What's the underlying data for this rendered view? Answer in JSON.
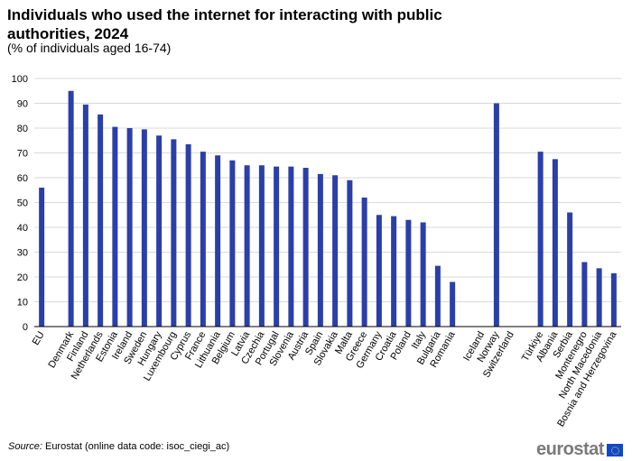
{
  "title": "Individuals who used the internet for interacting with public authorities, 2024",
  "subtitle": "(% of individuals aged 16-74)",
  "source_label": "Source:",
  "source_text": " Eurostat (online data code: isoc_ciegi_ac)",
  "logo_text": "eurostat",
  "colors": {
    "bar": "#2b3fa8",
    "grid": "#d9d9d9",
    "axis": "#000000"
  },
  "chart_data": {
    "type": "bar",
    "title": "Individuals who used the internet for interacting with public authorities, 2024",
    "subtitle": "(% of individuals aged 16-74)",
    "xlabel": "",
    "ylabel": "",
    "ylim": [
      0,
      100
    ],
    "yticks": [
      0,
      10,
      20,
      30,
      40,
      50,
      60,
      70,
      80,
      90,
      100
    ],
    "grid": true,
    "legend": "none",
    "categories": [
      "EU",
      "",
      "Denmark",
      "Finland",
      "Netherlands",
      "Estonia",
      "Ireland",
      "Sweden",
      "Hungary",
      "Luxembourg",
      "Cyprus",
      "France",
      "Lithuania",
      "Belgium",
      "Latvia",
      "Czechia",
      "Portugal",
      "Slovenia",
      "Austria",
      "Spain",
      "Slovakia",
      "Malta",
      "Greece",
      "Germany",
      "Croatia",
      "Poland",
      "Italy",
      "Bulgaria",
      "Romania",
      "",
      "Iceland",
      "Norway",
      "Switzerland",
      "",
      "Türkiye",
      "Albania",
      "Serbia",
      "Montenegro",
      "North Macedonia",
      "Bosnia and Herzegovina"
    ],
    "values": [
      56,
      null,
      95,
      89.5,
      85.5,
      80.5,
      80,
      79.5,
      77,
      75.5,
      73.5,
      70.5,
      69,
      67,
      65,
      65,
      64.5,
      64.5,
      64,
      61.5,
      61,
      59,
      52,
      45,
      44.5,
      43,
      42,
      24.5,
      18,
      null,
      null,
      90,
      null,
      null,
      70.5,
      67.5,
      46,
      26,
      23.5,
      21.5
    ]
  }
}
